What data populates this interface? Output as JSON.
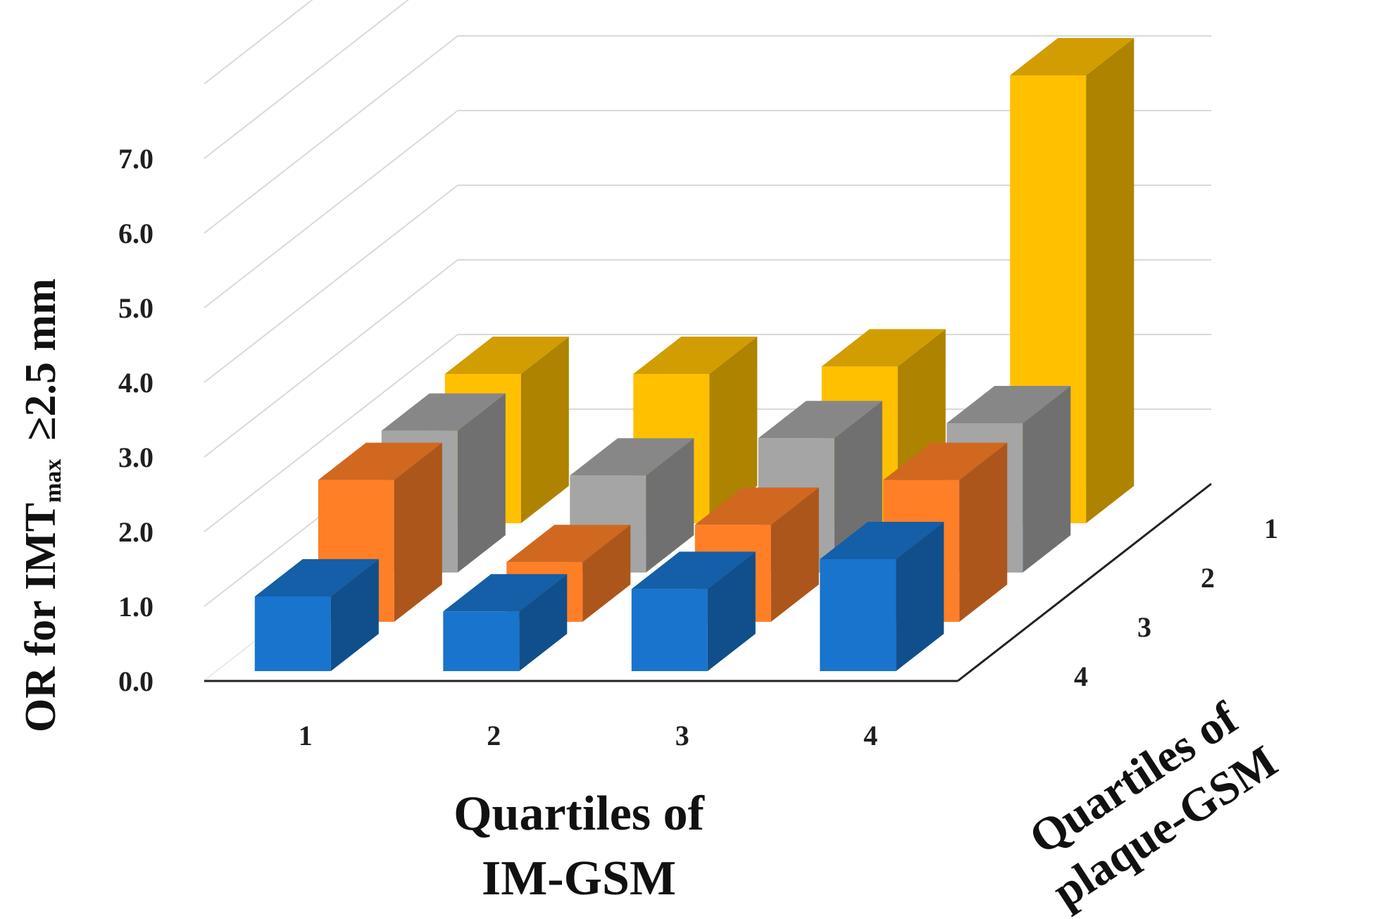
{
  "chart_data": {
    "type": "bar",
    "subtype": "3d-bar",
    "ylabel": {
      "prefix": "OR for IMT",
      "subscript": "max",
      "suffix": "≥2.5 mm"
    },
    "xlabel": [
      "Quartiles of",
      "IM-GSM"
    ],
    "zlabel": [
      "Quartiles of",
      "plaque-GSM"
    ],
    "y_ticks": [
      "0.0",
      "1.0",
      "2.0",
      "3.0",
      "4.0",
      "5.0",
      "6.0",
      "7.0"
    ],
    "ylim": [
      0,
      8
    ],
    "grid": true,
    "categories": [
      "1",
      "2",
      "3",
      "4"
    ],
    "depth_categories": [
      "1",
      "2",
      "3",
      "4"
    ],
    "series": [
      {
        "name": "1",
        "color": "#FFC000",
        "values": [
          2.0,
          2.0,
          2.1,
          6.0
        ]
      },
      {
        "name": "2",
        "color": "#A5A5A5",
        "values": [
          1.9,
          1.3,
          1.8,
          2.0
        ]
      },
      {
        "name": "3",
        "color": "#FF7F27",
        "values": [
          1.9,
          0.8,
          1.3,
          1.9
        ]
      },
      {
        "name": "4",
        "color": "#1874CD",
        "values": [
          1.0,
          0.8,
          1.1,
          1.5
        ]
      }
    ]
  }
}
